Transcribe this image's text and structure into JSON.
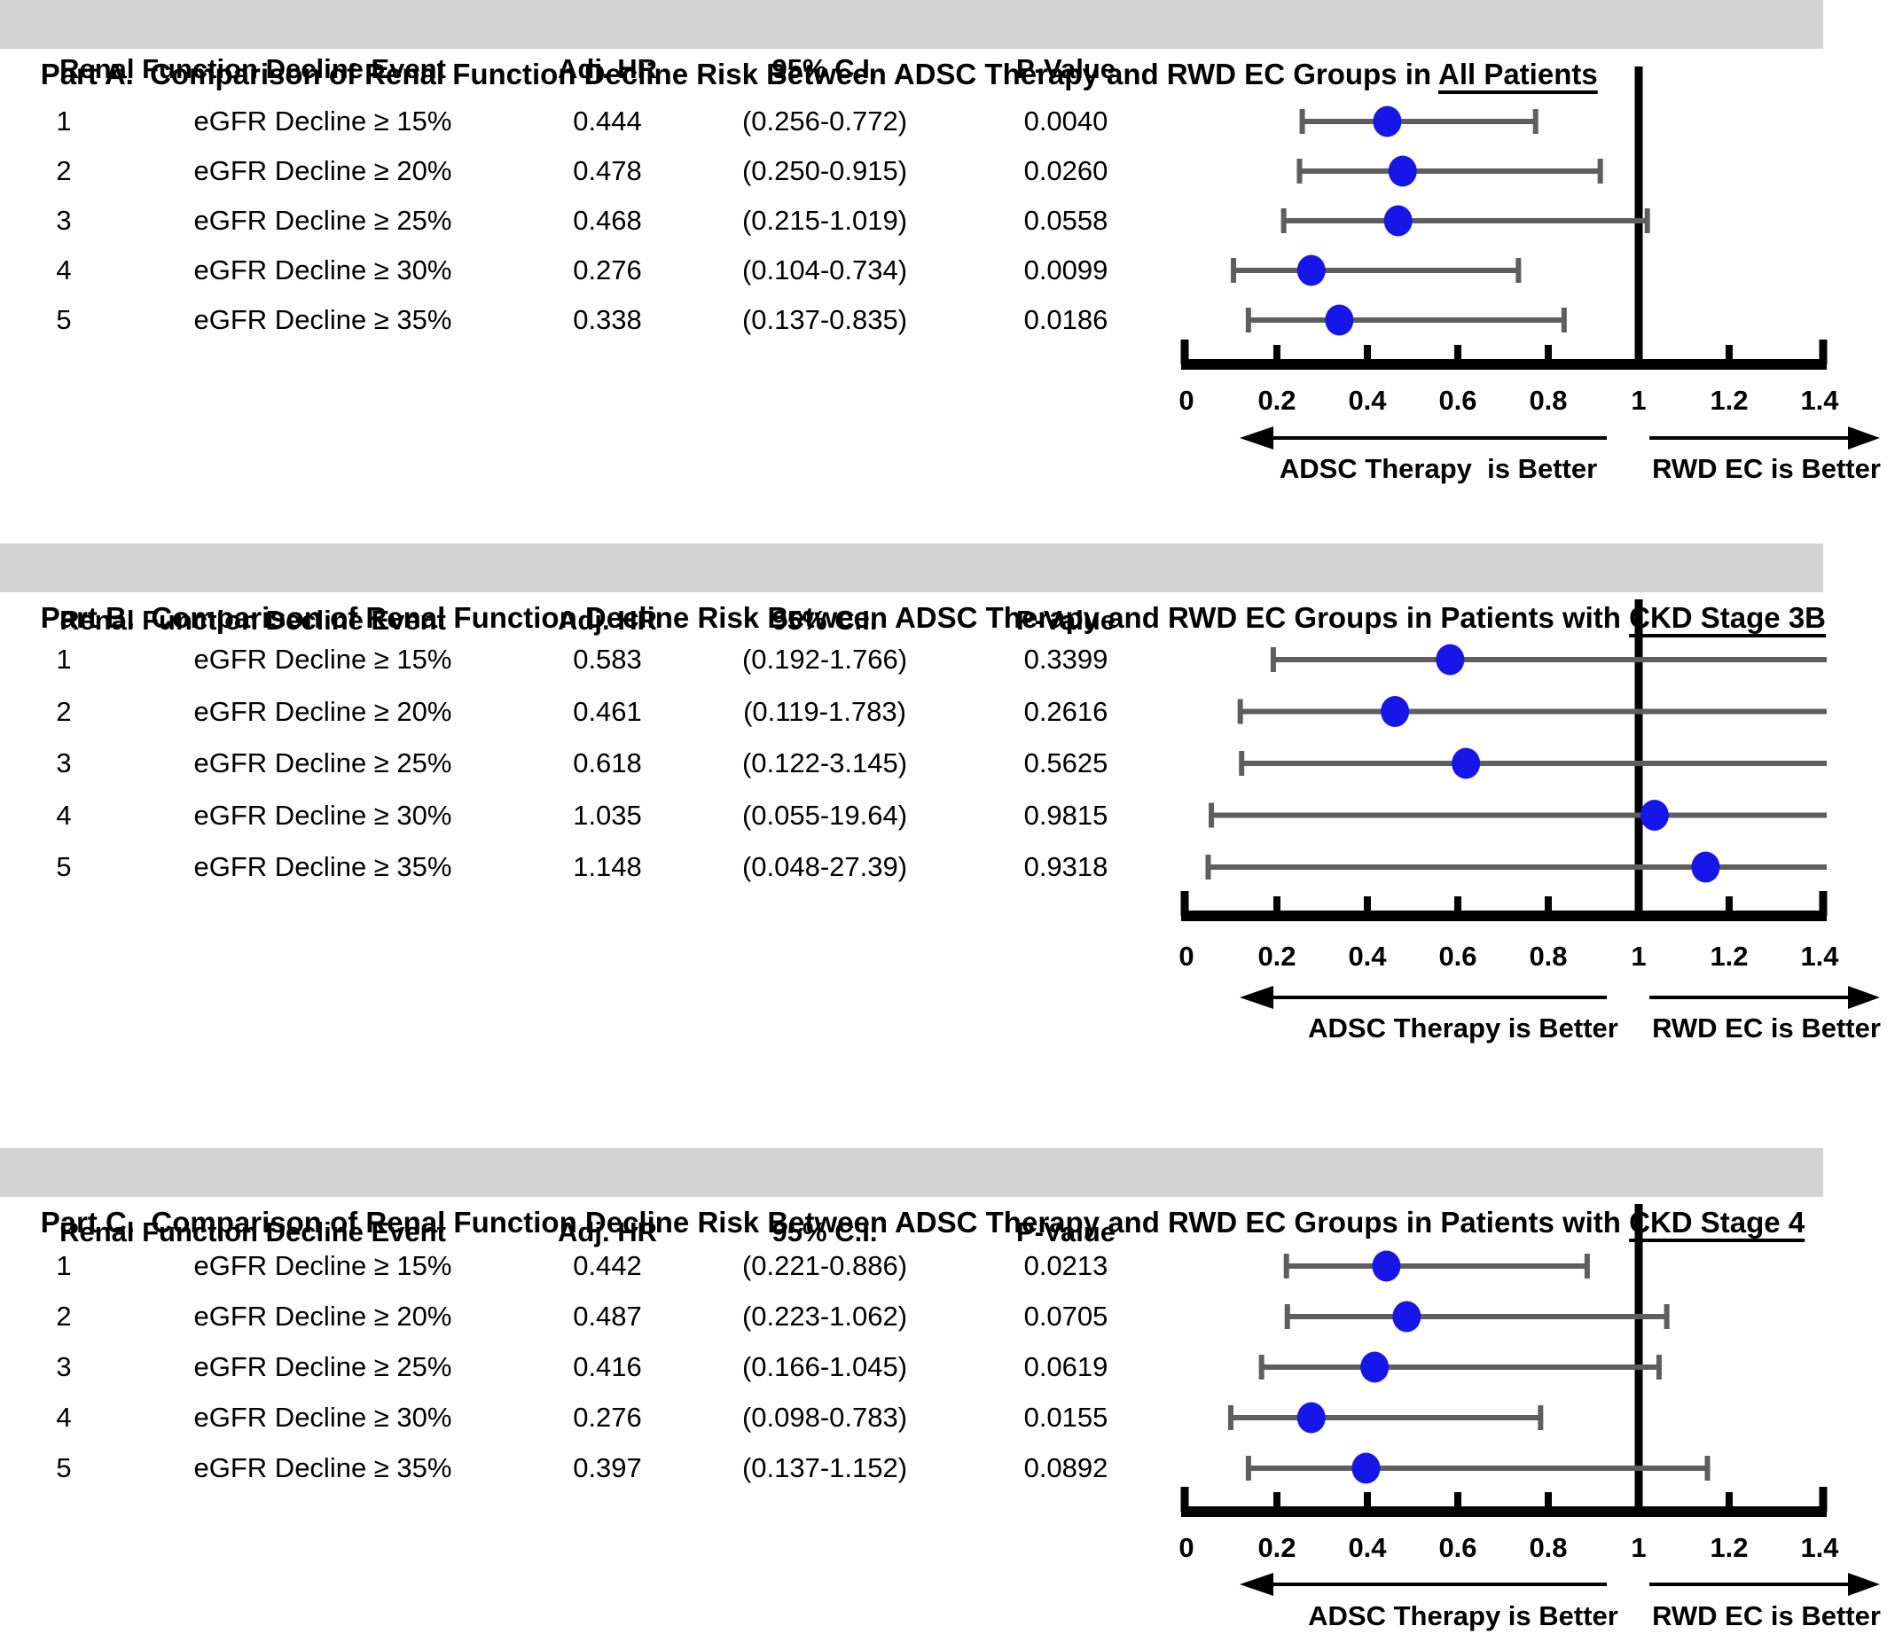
{
  "figure": {
    "marker_color": "#1616e8",
    "error_bar_color": "#5e5e5e",
    "axis_color": "#000000",
    "header_bg": "#d3d3d3"
  },
  "chart_data": [
    {
      "type": "scatter",
      "subtype": "forest-plot",
      "title_prefix": "Part A.  Comparison of Renal Function Decline Risk Between ADSC Therapy and RWD EC Groups in ",
      "title_emphasis": "All Patients",
      "columns": [
        "Renal Function Decline Event",
        "Adj. HR",
        "95% C.I.",
        "P-Value"
      ],
      "rows": [
        {
          "no": "1",
          "event": "eGFR Decline ≥ 15%",
          "adj_hr": "0.444",
          "ci": "(0.256-0.772)",
          "p_value": "0.0040",
          "hr": 0.444,
          "ci_low": 0.256,
          "ci_high": 0.772
        },
        {
          "no": "2",
          "event": "eGFR Decline ≥ 20%",
          "adj_hr": "0.478",
          "ci": "(0.250-0.915)",
          "p_value": "0.0260",
          "hr": 0.478,
          "ci_low": 0.25,
          "ci_high": 0.915
        },
        {
          "no": "3",
          "event": "eGFR Decline ≥ 25%",
          "adj_hr": "0.468",
          "ci": "(0.215-1.019)",
          "p_value": "0.0558",
          "hr": 0.468,
          "ci_low": 0.215,
          "ci_high": 1.019
        },
        {
          "no": "4",
          "event": "eGFR Decline ≥ 30%",
          "adj_hr": "0.276",
          "ci": "(0.104-0.734)",
          "p_value": "0.0099",
          "hr": 0.276,
          "ci_low": 0.104,
          "ci_high": 0.734
        },
        {
          "no": "5",
          "event": "eGFR Decline ≥ 35%",
          "adj_hr": "0.338",
          "ci": "(0.137-0.835)",
          "p_value": "0.0186",
          "hr": 0.338,
          "ci_low": 0.137,
          "ci_high": 0.835
        }
      ],
      "x_axis": {
        "range": [
          0,
          1.43
        ],
        "tick_values": [
          0,
          0.2,
          0.4,
          0.6,
          0.8,
          1,
          1.2,
          1.4
        ],
        "tick_labels": [
          "0",
          "0.2",
          "0.4",
          "0.6",
          "0.8",
          "1",
          "1.2",
          "1.4"
        ],
        "reference_line": 1
      },
      "grid": false,
      "left_arrow_label": "ADSC Therapy  is Better",
      "right_arrow_label": "RWD EC is Better"
    },
    {
      "type": "scatter",
      "subtype": "forest-plot",
      "title_prefix": "Part B.  Comparison of Renal Function Decline Risk Between ADSC Therapy and RWD EC Groups in Patients with ",
      "title_emphasis": "CKD Stage 3B",
      "columns": [
        "Renal Function Decline Event",
        "Adj. HR",
        "95% C.I.",
        "P-Value"
      ],
      "rows": [
        {
          "no": "1",
          "event": "eGFR Decline ≥ 15%",
          "adj_hr": "0.583",
          "ci": "(0.192-1.766)",
          "p_value": "0.3399",
          "hr": 0.583,
          "ci_low": 0.192,
          "ci_high": 1.766
        },
        {
          "no": "2",
          "event": "eGFR Decline ≥ 20%",
          "adj_hr": "0.461",
          "ci": "(0.119-1.783)",
          "p_value": "0.2616",
          "hr": 0.461,
          "ci_low": 0.119,
          "ci_high": 1.783
        },
        {
          "no": "3",
          "event": "eGFR Decline ≥ 25%",
          "adj_hr": "0.618",
          "ci": "(0.122-3.145)",
          "p_value": "0.5625",
          "hr": 0.618,
          "ci_low": 0.122,
          "ci_high": 3.145
        },
        {
          "no": "4",
          "event": "eGFR Decline ≥ 30%",
          "adj_hr": "1.035",
          "ci": "(0.055-19.64)",
          "p_value": "0.9815",
          "hr": 1.035,
          "ci_low": 0.055,
          "ci_high": 19.64
        },
        {
          "no": "5",
          "event": "eGFR Decline ≥ 35%",
          "adj_hr": "1.148",
          "ci": "(0.048-27.39)",
          "p_value": "0.9318",
          "hr": 1.148,
          "ci_low": 0.048,
          "ci_high": 27.39
        }
      ],
      "x_axis": {
        "range": [
          0,
          1.43
        ],
        "tick_values": [
          0,
          0.2,
          0.4,
          0.6,
          0.8,
          1,
          1.2,
          1.4
        ],
        "tick_labels": [
          "0",
          "0.2",
          "0.4",
          "0.6",
          "0.8",
          "1",
          "1.2",
          "1.4"
        ],
        "reference_line": 1
      },
      "grid": false,
      "left_arrow_label": "ADSC Therapy is Better",
      "right_arrow_label": "RWD EC is Better"
    },
    {
      "type": "scatter",
      "subtype": "forest-plot",
      "title_prefix": "Part C.  Comparison of Renal Function Decline Risk Between ADSC Therapy and RWD EC Groups in Patients with ",
      "title_emphasis": "CKD Stage 4",
      "columns": [
        "Renal Function Decline Event",
        "Adj. HR",
        "95% C.I.",
        "P-Value"
      ],
      "rows": [
        {
          "no": "1",
          "event": "eGFR Decline ≥ 15%",
          "adj_hr": "0.442",
          "ci": "(0.221-0.886)",
          "p_value": "0.0213",
          "hr": 0.442,
          "ci_low": 0.221,
          "ci_high": 0.886
        },
        {
          "no": "2",
          "event": "eGFR Decline ≥ 20%",
          "adj_hr": "0.487",
          "ci": "(0.223-1.062)",
          "p_value": "0.0705",
          "hr": 0.487,
          "ci_low": 0.223,
          "ci_high": 1.062
        },
        {
          "no": "3",
          "event": "eGFR Decline ≥ 25%",
          "adj_hr": "0.416",
          "ci": "(0.166-1.045)",
          "p_value": "0.0619",
          "hr": 0.416,
          "ci_low": 0.166,
          "ci_high": 1.045
        },
        {
          "no": "4",
          "event": "eGFR Decline ≥ 30%",
          "adj_hr": "0.276",
          "ci": "(0.098-0.783)",
          "p_value": "0.0155",
          "hr": 0.276,
          "ci_low": 0.098,
          "ci_high": 0.783
        },
        {
          "no": "5",
          "event": "eGFR Decline ≥ 35%",
          "adj_hr": "0.397",
          "ci": "(0.137-1.152)",
          "p_value": "0.0892",
          "hr": 0.397,
          "ci_low": 0.137,
          "ci_high": 1.152
        }
      ],
      "x_axis": {
        "range": [
          0,
          1.43
        ],
        "tick_values": [
          0,
          0.2,
          0.4,
          0.6,
          0.8,
          1,
          1.2,
          1.4
        ],
        "tick_labels": [
          "0",
          "0.2",
          "0.4",
          "0.6",
          "0.8",
          "1",
          "1.2",
          "1.4"
        ],
        "reference_line": 1
      },
      "grid": false,
      "left_arrow_label": "ADSC Therapy is Better",
      "right_arrow_label": "RWD EC is Better"
    }
  ]
}
